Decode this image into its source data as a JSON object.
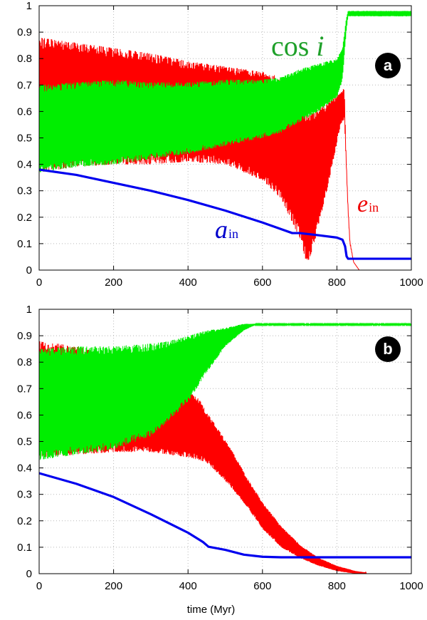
{
  "chart_data": [
    {
      "panel": "a",
      "type": "line",
      "xlim": [
        0,
        1000
      ],
      "ylim": [
        0,
        1
      ],
      "xticks": [
        0,
        200,
        400,
        600,
        800,
        1000
      ],
      "yticks": [
        0,
        0.1,
        0.2,
        0.3,
        0.4,
        0.5,
        0.6,
        0.7,
        0.8,
        0.9,
        1
      ],
      "ytick_labels": [
        "0",
        "0.1",
        "0.2",
        "0.3",
        "0.4",
        "0.5",
        "0.6",
        "0.7",
        "0.8",
        "0.9",
        "1"
      ],
      "grid": true,
      "xlabel": "",
      "badge": "a",
      "labels": {
        "cos": "cos",
        "cos_var": "i",
        "e_main": "e",
        "e_sub": "in",
        "a_main": "a",
        "a_sub": "in"
      },
      "series": [
        {
          "name": "e_in",
          "color": "#ff0000",
          "style": "oscillating band",
          "x": [
            0,
            100,
            200,
            300,
            400,
            500,
            600,
            650,
            700,
            720,
            740,
            780,
            810,
            820,
            825,
            830,
            835,
            845,
            860,
            1000
          ],
          "lower": [
            0.37,
            0.39,
            0.4,
            0.4,
            0.41,
            0.4,
            0.34,
            0.27,
            0.12,
            0.02,
            0.1,
            0.34,
            0.55,
            0.57,
            0.4,
            0.22,
            0.1,
            0.03,
            0.0,
            0.0
          ],
          "upper": [
            0.88,
            0.86,
            0.84,
            0.82,
            0.79,
            0.77,
            0.75,
            0.73,
            0.69,
            0.58,
            0.6,
            0.64,
            0.67,
            0.69,
            0.42,
            0.24,
            0.11,
            0.03,
            0.0,
            0.0
          ]
        },
        {
          "name": "cos i",
          "color": "#00ee00",
          "style": "oscillating band",
          "x": [
            0,
            100,
            200,
            300,
            400,
            500,
            600,
            650,
            700,
            750,
            800,
            815,
            825,
            830,
            1000
          ],
          "lower": [
            0.37,
            0.39,
            0.4,
            0.42,
            0.44,
            0.47,
            0.5,
            0.52,
            0.56,
            0.6,
            0.65,
            0.72,
            0.9,
            0.96,
            0.96
          ],
          "upper": [
            0.7,
            0.71,
            0.72,
            0.71,
            0.71,
            0.72,
            0.72,
            0.73,
            0.76,
            0.78,
            0.8,
            0.84,
            0.95,
            0.98,
            0.98
          ]
        },
        {
          "name": "a_in",
          "color": "#0000ee",
          "style": "line",
          "x": [
            0,
            100,
            200,
            300,
            400,
            500,
            600,
            680,
            700,
            750,
            800,
            815,
            822,
            826,
            830,
            840,
            1000
          ],
          "values": [
            0.38,
            0.36,
            0.33,
            0.3,
            0.265,
            0.225,
            0.18,
            0.14,
            0.14,
            0.132,
            0.123,
            0.115,
            0.09,
            0.052,
            0.043,
            0.043,
            0.043
          ]
        }
      ]
    },
    {
      "panel": "b",
      "type": "line",
      "xlim": [
        0,
        1000
      ],
      "ylim": [
        0,
        1
      ],
      "xticks": [
        0,
        200,
        400,
        600,
        800,
        1000
      ],
      "yticks": [
        0,
        0.1,
        0.2,
        0.3,
        0.4,
        0.5,
        0.6,
        0.7,
        0.8,
        0.9,
        1
      ],
      "ytick_labels": [
        "0",
        "0.1",
        "0.2",
        "0.3",
        "0.4",
        "0.5",
        "0.6",
        "0.7",
        "0.8",
        "0.9",
        "1"
      ],
      "grid": true,
      "xlabel": "time (Myr)",
      "badge": "b",
      "series": [
        {
          "name": "e_in",
          "color": "#ff0000",
          "style": "oscillating band",
          "x": [
            0,
            100,
            200,
            300,
            350,
            400,
            430,
            450,
            480,
            520,
            560,
            600,
            650,
            700,
            750,
            800,
            850,
            900,
            1000
          ],
          "lower": [
            0.44,
            0.45,
            0.46,
            0.46,
            0.45,
            0.44,
            0.43,
            0.42,
            0.38,
            0.32,
            0.25,
            0.17,
            0.1,
            0.06,
            0.03,
            0.01,
            0.0,
            0.0,
            0.0
          ],
          "upper": [
            0.88,
            0.86,
            0.82,
            0.7,
            0.67,
            0.69,
            0.66,
            0.61,
            0.55,
            0.46,
            0.36,
            0.27,
            0.18,
            0.11,
            0.06,
            0.03,
            0.01,
            0.0,
            0.0
          ]
        },
        {
          "name": "cos i",
          "color": "#00ee00",
          "style": "oscillating band",
          "x": [
            0,
            100,
            200,
            300,
            350,
            400,
            450,
            500,
            550,
            580,
            600,
            1000
          ],
          "lower": [
            0.43,
            0.45,
            0.47,
            0.52,
            0.58,
            0.65,
            0.76,
            0.86,
            0.92,
            0.94,
            0.94,
            0.94
          ],
          "upper": [
            0.85,
            0.86,
            0.86,
            0.87,
            0.88,
            0.9,
            0.92,
            0.93,
            0.945,
            0.945,
            0.945,
            0.945
          ]
        },
        {
          "name": "a_in",
          "color": "#0000ee",
          "style": "line",
          "x": [
            0,
            100,
            200,
            300,
            400,
            440,
            455,
            500,
            550,
            600,
            650,
            1000
          ],
          "values": [
            0.38,
            0.34,
            0.29,
            0.225,
            0.155,
            0.12,
            0.102,
            0.09,
            0.072,
            0.064,
            0.062,
            0.062
          ]
        }
      ]
    }
  ]
}
